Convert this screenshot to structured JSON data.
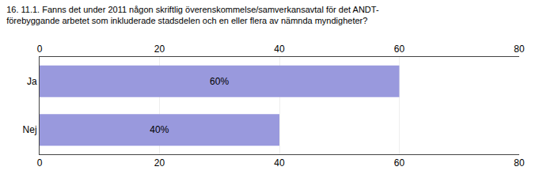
{
  "chart_data": {
    "type": "bar",
    "title": "16. 11.1. Fanns det under 2011 någon skriftlig överenskommelse/samverkansavtal för det ANDT-\nförebyggande arbetet som inkluderade stadsdelen och en eller flera av nämnda myndigheter?",
    "orientation": "horizontal",
    "categories": [
      "Ja",
      "Nej"
    ],
    "values": [
      60,
      40
    ],
    "value_labels": [
      "60%",
      "40%"
    ],
    "data_labels": true,
    "color": "#9999dd",
    "xlim": [
      0,
      80
    ],
    "xticks": [
      0,
      20,
      40,
      60,
      80
    ],
    "grid": true
  }
}
